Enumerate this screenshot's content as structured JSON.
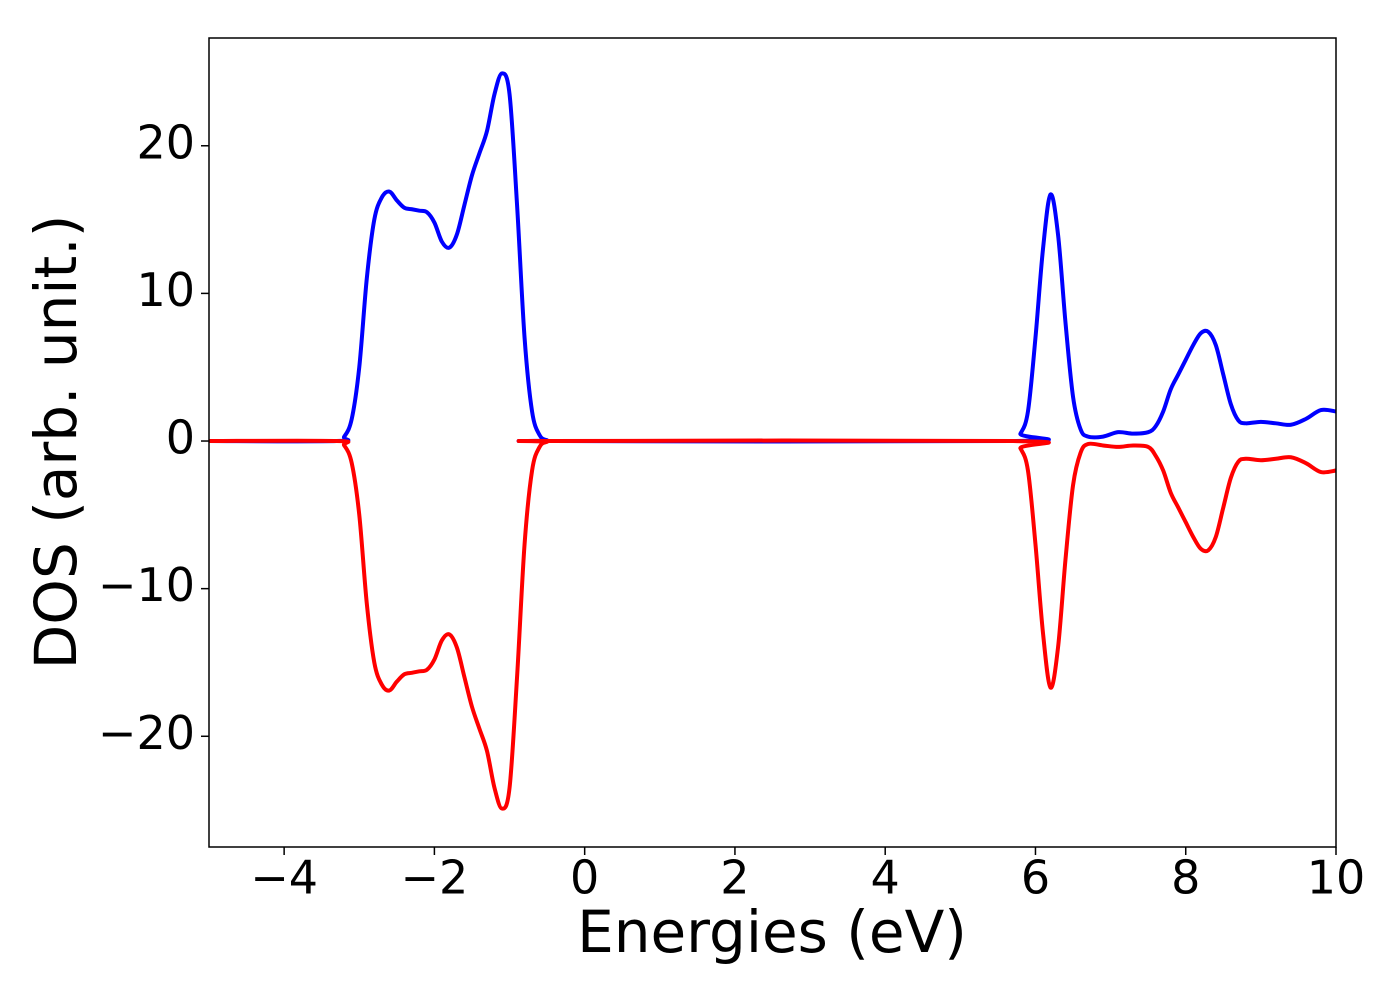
{
  "chart_data": {
    "type": "line",
    "xlabel": "Energies (eV)",
    "ylabel": "DOS (arb. unit.)",
    "x": [
      -5,
      -3.3,
      -3.2,
      -3.1,
      -3.0,
      -2.9,
      -2.8,
      -2.7,
      -2.6,
      -2.5,
      -2.4,
      -2.3,
      -2.2,
      -2.1,
      -2.0,
      -1.9,
      -1.8,
      -1.7,
      -1.6,
      -1.5,
      -1.4,
      -1.3,
      -1.2,
      -1.1,
      -1.0,
      -0.9,
      -0.8,
      -0.7,
      -0.6,
      -0.5,
      -0.4,
      5.7,
      5.8,
      5.9,
      6.0,
      6.1,
      6.2,
      6.3,
      6.4,
      6.5,
      6.6,
      6.7,
      6.9,
      7.1,
      7.3,
      7.5,
      7.6,
      7.7,
      7.8,
      7.9,
      8.0,
      8.1,
      8.2,
      8.3,
      8.4,
      8.5,
      8.6,
      8.7,
      8.8,
      9.0,
      9.2,
      9.4,
      9.6,
      9.8,
      10.0
    ],
    "series": [
      {
        "color": "#0000ff",
        "values": [
          0,
          0,
          0.3,
          1.5,
          5,
          11,
          15,
          16.5,
          16.9,
          16.3,
          15.8,
          15.7,
          15.6,
          15.5,
          14.8,
          13.5,
          13.1,
          14,
          16,
          18,
          19.5,
          21,
          23.5,
          24.9,
          23.5,
          16,
          7,
          2,
          0.4,
          0.05,
          0,
          0,
          0.5,
          2,
          7,
          13,
          16.7,
          14,
          8,
          3,
          0.8,
          0.3,
          0.3,
          0.6,
          0.5,
          0.6,
          1,
          2,
          3.5,
          4.5,
          5.5,
          6.5,
          7.3,
          7.4,
          6.5,
          4.5,
          2.5,
          1.4,
          1.2,
          1.3,
          1.2,
          1.1,
          1.5,
          2.1,
          2.0
        ]
      },
      {
        "color": "#ff0000",
        "values": [
          0,
          0,
          -0.3,
          -1.5,
          -5,
          -11,
          -15,
          -16.5,
          -16.9,
          -16.3,
          -15.8,
          -15.7,
          -15.6,
          -15.5,
          -14.8,
          -13.5,
          -13.1,
          -14,
          -16,
          -18,
          -19.5,
          -21,
          -23.5,
          -24.9,
          -23.5,
          -16,
          -7,
          -2,
          -0.4,
          -0.05,
          0,
          0,
          -0.5,
          -2,
          -7,
          -13,
          -16.7,
          -14,
          -8,
          -3,
          -0.8,
          -0.2,
          -0.3,
          -0.4,
          -0.3,
          -0.4,
          -1,
          -2,
          -3.5,
          -4.5,
          -5.5,
          -6.5,
          -7.3,
          -7.4,
          -6.5,
          -4.5,
          -2.5,
          -1.4,
          -1.2,
          -1.3,
          -1.2,
          -1.1,
          -1.5,
          -2.1,
          -2.0
        ]
      }
    ],
    "xlim": [
      -5,
      10
    ],
    "xticks": [
      {
        "value": -4,
        "label": "−4"
      },
      {
        "value": -2,
        "label": "−2"
      },
      0,
      2,
      4,
      6,
      8,
      10
    ],
    "ylim": [
      -27.5,
      27.3
    ],
    "yticks": [
      {
        "value": -20,
        "label": "−20"
      },
      {
        "value": -10,
        "label": "−10"
      },
      0,
      10,
      20
    ]
  }
}
